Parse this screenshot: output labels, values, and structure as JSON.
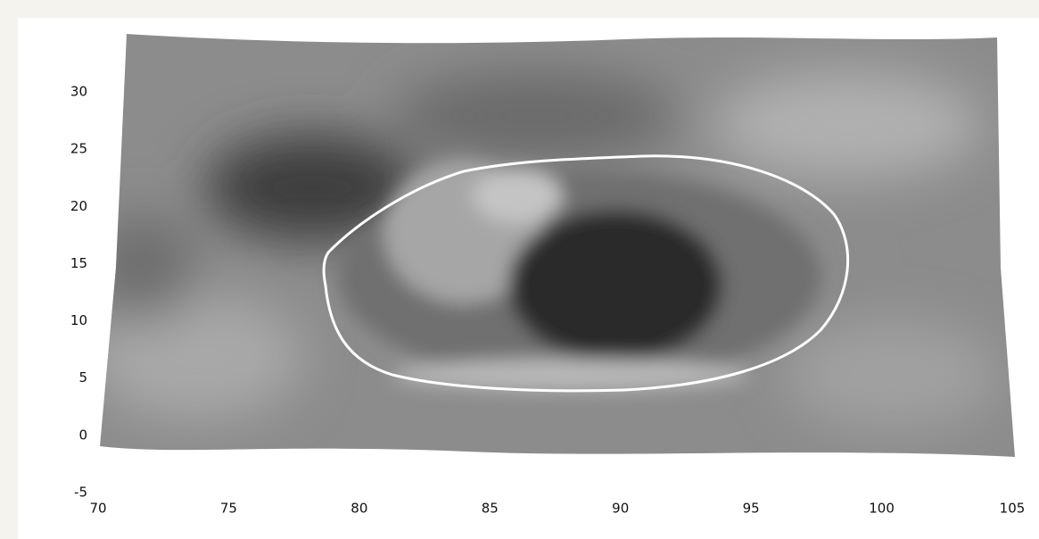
{
  "chart_data": {
    "type": "surface",
    "xlim": [
      70,
      105
    ],
    "xticks": [
      70,
      75,
      80,
      85,
      90,
      95,
      100,
      105
    ],
    "ylim": [
      -5,
      30
    ],
    "yticks": [
      -5,
      0,
      5,
      10,
      15,
      20,
      25,
      30
    ]
  }
}
